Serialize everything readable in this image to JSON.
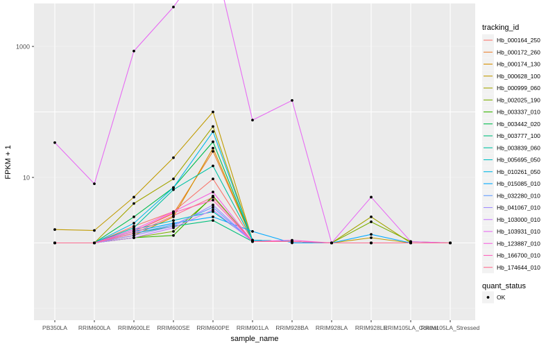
{
  "chart_data": {
    "type": "line",
    "xlabel": "sample_name",
    "ylabel": "FPKM + 1",
    "yscale": "log10",
    "ylim": [
      1,
      10000
    ],
    "yticks": [
      10,
      1000
    ],
    "ytick_labels": [
      "10",
      "1000"
    ],
    "grid": true,
    "legend_position": "right",
    "categories": [
      "PB350LA",
      "RRIM600LA",
      "RRIM600LE",
      "RRIM600SE",
      "RRIM600PE",
      "RRIM901LA",
      "RRIM928BA",
      "RRIM928LA",
      "RRIM928LE",
      "RRIM105LA_Control",
      "RRIM105LA_Stressed"
    ],
    "series": [
      {
        "name": "Hb_000164_250",
        "color": "#F8766D",
        "values": [
          1,
          1,
          1.8,
          3,
          9.5,
          1.1,
          1.05,
          1,
          1,
          1,
          1
        ]
      },
      {
        "name": "Hb_000172_260",
        "color": "#EA8331",
        "values": [
          1,
          1,
          1.5,
          2.8,
          25,
          1.1,
          1.05,
          1,
          1,
          1,
          1
        ]
      },
      {
        "name": "Hb_000174_130",
        "color": "#D89000",
        "values": [
          1,
          1,
          1.3,
          2.5,
          28,
          1.1,
          1.05,
          1,
          1,
          1,
          1
        ]
      },
      {
        "name": "Hb_000628_100",
        "color": "#C09B00",
        "values": [
          1.6,
          1.55,
          5,
          20,
          100,
          1.1,
          1.05,
          1,
          1.2,
          1,
          1
        ]
      },
      {
        "name": "Hb_000999_060",
        "color": "#A3A500",
        "values": [
          1,
          1,
          4,
          9.5,
          60,
          1.1,
          1.05,
          1,
          2.5,
          1,
          1
        ]
      },
      {
        "name": "Hb_002025_190",
        "color": "#7CAE00",
        "values": [
          1,
          1,
          1.2,
          1.5,
          5,
          1.05,
          1.05,
          1,
          2.1,
          1.05,
          1
        ]
      },
      {
        "name": "Hb_003337_010",
        "color": "#39B600",
        "values": [
          1,
          1,
          1.2,
          1.3,
          5.2,
          1.05,
          1.05,
          1,
          1,
          1,
          1
        ]
      },
      {
        "name": "Hb_003442_020",
        "color": "#00BB4E",
        "values": [
          1,
          1,
          2.5,
          7,
          35,
          1.1,
          1.05,
          1,
          1,
          1,
          1
        ]
      },
      {
        "name": "Hb_003777_100",
        "color": "#00BF7D",
        "values": [
          1,
          1,
          1.4,
          1.8,
          2.2,
          1.05,
          1.05,
          1,
          1,
          1,
          1
        ]
      },
      {
        "name": "Hb_003839_060",
        "color": "#00C1A3",
        "values": [
          1,
          1,
          1.7,
          6.5,
          15,
          1.1,
          1.05,
          1,
          1,
          1,
          1
        ]
      },
      {
        "name": "Hb_005695_050",
        "color": "#00BFC4",
        "values": [
          1,
          1,
          1.6,
          2.2,
          3,
          1.1,
          1.05,
          1,
          1,
          1,
          1
        ]
      },
      {
        "name": "Hb_010261_050",
        "color": "#00B8E7",
        "values": [
          1,
          1,
          2,
          7,
          50,
          1.1,
          1.05,
          1,
          1,
          1,
          1
        ]
      },
      {
        "name": "Hb_015085_010",
        "color": "#00A9FF",
        "values": [
          1,
          1,
          1.5,
          2,
          2.5,
          1.5,
          1,
          1,
          1.35,
          1,
          1
        ]
      },
      {
        "name": "Hb_032280_010",
        "color": "#619CFF",
        "values": [
          1,
          1,
          1.4,
          1.9,
          3.5,
          1.05,
          1.05,
          1,
          1,
          1,
          1
        ]
      },
      {
        "name": "Hb_041067_010",
        "color": "#9F8CFF",
        "values": [
          1,
          1,
          1.3,
          1.8,
          3.8,
          1.05,
          1.05,
          1,
          1,
          1,
          1
        ]
      },
      {
        "name": "Hb_103000_010",
        "color": "#C77CFF",
        "values": [
          1,
          1,
          1.2,
          1.7,
          3.2,
          1.05,
          1.05,
          1,
          1,
          1,
          1
        ]
      },
      {
        "name": "Hb_103931_010",
        "color": "#E76BF3",
        "values": [
          34,
          8,
          850,
          4000,
          27000,
          75,
          150,
          1,
          5,
          1.05,
          1
        ]
      },
      {
        "name": "Hb_123887_010",
        "color": "#F763E0",
        "values": [
          1,
          1,
          1.6,
          3,
          6,
          1.05,
          1.1,
          1,
          1,
          1,
          1
        ]
      },
      {
        "name": "Hb_166700_010",
        "color": "#FF62BC",
        "values": [
          1,
          1,
          1.5,
          2.9,
          4.5,
          1.05,
          1.05,
          1,
          1,
          1,
          1
        ]
      },
      {
        "name": "Hb_174644_010",
        "color": "#FF6C91",
        "values": [
          1,
          1,
          1.4,
          2.6,
          5,
          1.05,
          1.05,
          1,
          1,
          1,
          1
        ]
      }
    ]
  },
  "legend": {
    "title": "tracking_id",
    "quant_title": "quant_status",
    "quant_items": [
      {
        "label": "OK"
      }
    ]
  }
}
